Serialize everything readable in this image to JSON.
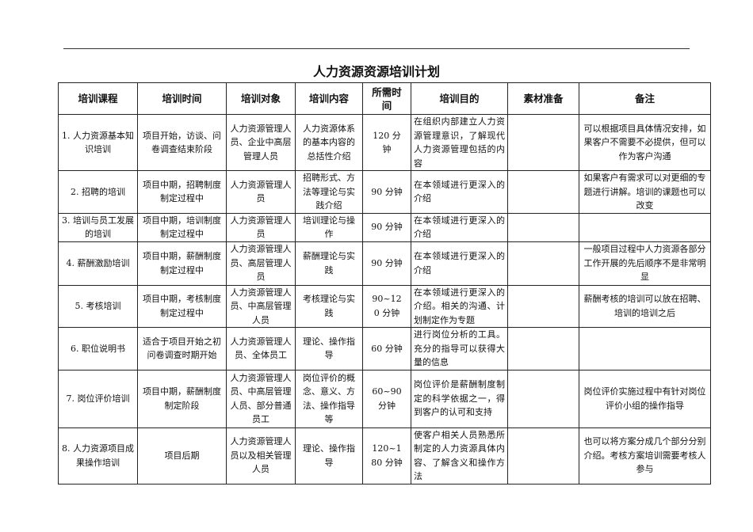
{
  "title": "人力资源资源培训计划",
  "headers": [
    "培训课程",
    "培训时间",
    "培训对象",
    "培训内容",
    "所需时间",
    "培训目的",
    "素材准备",
    "备注"
  ],
  "rows": [
    {
      "course": "1. 人力资源基本知识培训",
      "time": "项目开始，访谈、问卷调查结束阶段",
      "target": "人力资源管理人员、企业中高层管理人员",
      "content": "人力资源体系的基本内容的总括性介绍",
      "duration": "120 分钟",
      "purpose": "在组织内部建立人力资源管理意识，了解现代人力资源管理包括的内容",
      "materials": "",
      "notes": "可以根据项目具体情况安排，如果客户不需要不必提供，但可以作为客户沟通"
    },
    {
      "course": "2. 招聘的培训",
      "time": "项目中期，招聘制度制定过程中",
      "target": "人力资源管理人员",
      "content": "招聘形式、方法等理论与实践介绍",
      "duration": "90 分钟",
      "purpose": "在本领域进行更深入的介绍",
      "materials": "",
      "notes": "如果客户有需求可以对更细的专题进行讲解。培训的课题也可以改变"
    },
    {
      "course": "3. 培训与员工发展的培训",
      "time": "项目中期，培训制度制定过程中",
      "target": "人力资源管理人员",
      "content": "培训理论与操作",
      "duration": "90 分钟",
      "purpose": "在本领域进行更深入的介绍",
      "materials": "",
      "notes": ""
    },
    {
      "course": "4. 薪酬激励培训",
      "time": "项目中期，薪酬制度制定过程中",
      "target": "人力资源管理人员、高层管理人员",
      "content": "薪酬理论与实践",
      "duration": "90 分钟",
      "purpose": "在本领域进行更深入的介绍",
      "materials": "",
      "notes": "一般项目过程中人力资源各部分工作开展的先后顺序不是非常明显"
    },
    {
      "course": "5. 考核培训",
      "time": "项目中期，考核制度制定过程中",
      "target": "人力资源管理人员、中高层管理人员",
      "content": "考核理论与实践",
      "duration": "90~120 分钟",
      "purpose": "在本领域进行更深入的介绍。相关的沟通、计划制定作为专题",
      "materials": "",
      "notes": "薪酬考核的培训可以放在招聘、培训的培训之后"
    },
    {
      "course": "6. 职位说明书",
      "time": "适合于项目开始之初问卷调查时期开始",
      "target": "人力资源管理人员、全体员工",
      "content": "理论、操作指导",
      "duration": "60 分钟",
      "purpose": "进行岗位分析的工具。充分的指导可以获得大量的信息",
      "materials": "",
      "notes": ""
    },
    {
      "course": "7. 岗位评价培训",
      "time": "项目中期，薪酬制度制定阶段",
      "target": "人力资源管理人员、中高层管理人员、部分普通员工",
      "content": "岗位评价的概念、意义、方法、操作指导等",
      "duration": "60~90 分钟",
      "purpose": "岗位评价是薪酬制度制定的科学依据之一，得到客户的认可和支持",
      "materials": "",
      "notes": "岗位评价实施过程中有针对岗位评价小组的操作指导"
    },
    {
      "course": "8. 人力资源项目成果操作培训",
      "time": "项目后期",
      "target": "人力资源管理人员以及相关管理人员",
      "content": "理论、操作指导",
      "duration": "120~180 分钟",
      "purpose": "使客户相关人员熟悉所制定的人力资源具体内容、了解含义和操作方法",
      "materials": "",
      "notes": "也可以将方案分成几个部分分别介绍。考核方案培训需要考核人参与"
    }
  ]
}
